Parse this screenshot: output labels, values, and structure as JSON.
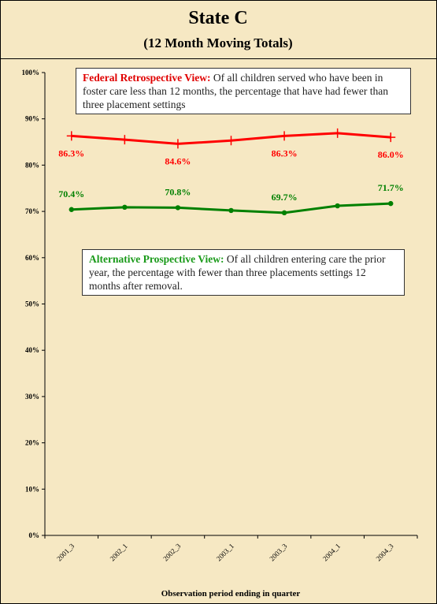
{
  "chart_data": {
    "type": "line",
    "title": "State C",
    "subtitle": "(12 Month Moving Totals)",
    "x_label": "Observation period ending in quarter",
    "categories": [
      "2001_3",
      "2002_1",
      "2002_3",
      "2003_1",
      "2003_3",
      "2004_1",
      "2004_3"
    ],
    "series": [
      {
        "color": "#ff0000",
        "marker": "plus",
        "label_side": "below",
        "values": [
          86.3,
          85.5,
          84.6,
          85.3,
          86.3,
          86.9,
          86.0
        ],
        "value_labels": [
          "86.3%",
          null,
          "84.6%",
          null,
          "86.3%",
          null,
          "86.0%"
        ]
      },
      {
        "color": "#008000",
        "marker": "dot",
        "label_side": "above",
        "values": [
          70.4,
          70.9,
          70.8,
          70.2,
          69.7,
          71.2,
          71.7
        ],
        "value_labels": [
          "70.4%",
          null,
          "70.8%",
          null,
          "69.7%",
          null,
          "71.7%"
        ]
      }
    ],
    "ylim": [
      0,
      100
    ],
    "yticks": [
      {
        "value": 0,
        "label": "0%"
      },
      {
        "value": 10,
        "label": "10%"
      },
      {
        "value": 20,
        "label": "20%"
      },
      {
        "value": 30,
        "label": "30%"
      },
      {
        "value": 40,
        "label": "40%"
      },
      {
        "value": 50,
        "label": "50%"
      },
      {
        "value": 60,
        "label": "60%"
      },
      {
        "value": 70,
        "label": "70%"
      },
      {
        "value": 80,
        "label": "80%"
      },
      {
        "value": 90,
        "label": "90%"
      },
      {
        "value": 100,
        "label": "100%"
      }
    ],
    "grid": false,
    "annotations": [
      {
        "label": "Federal Retrospective View:",
        "text": "Of all children served who have been in foster care less than 12 months, the percentage that have had fewer than three placement settings",
        "color": "#e00000"
      },
      {
        "label": "Alternative Prospective View:",
        "text": "Of all children entering care the prior year, the percentage with fewer than three placements settings 12 months after removal.",
        "color": "#1a9a1a"
      }
    ]
  }
}
